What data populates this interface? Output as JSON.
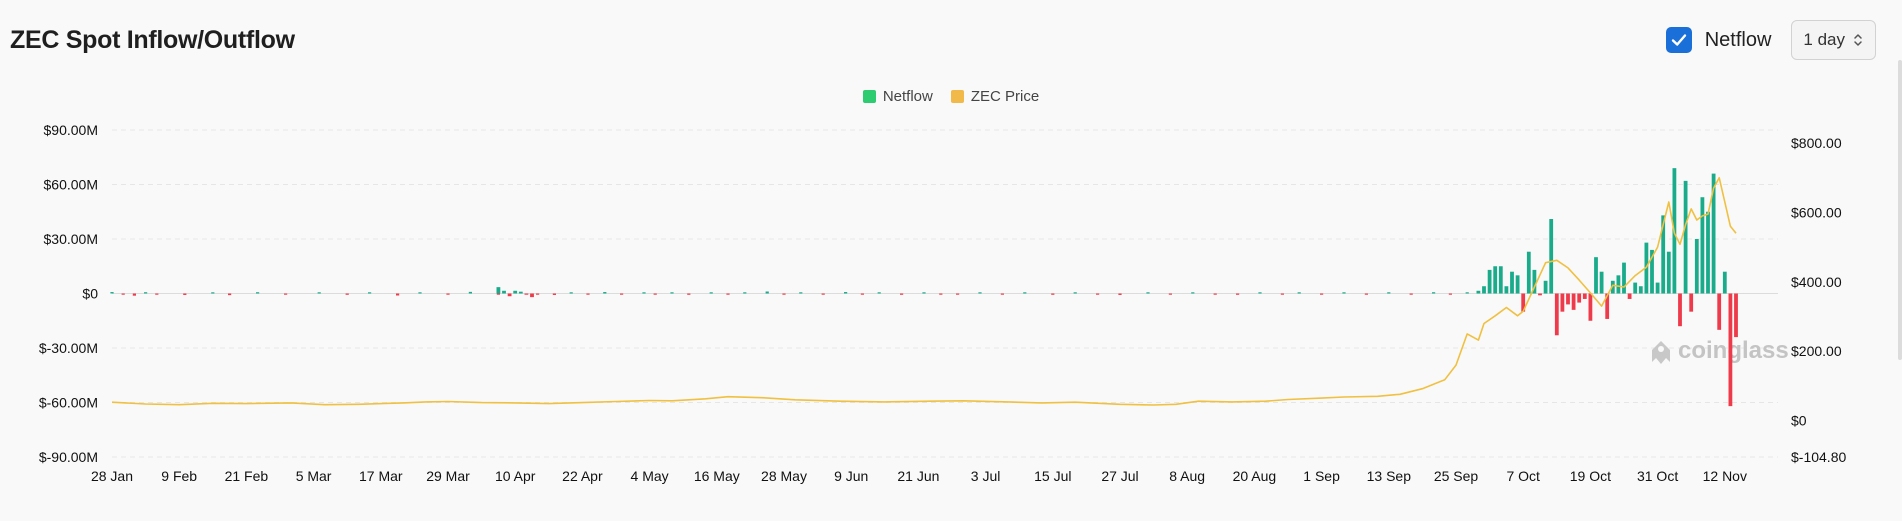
{
  "title": "ZEC Spot Inflow/Outflow",
  "controls": {
    "netflow_label": "Netflow",
    "netflow_checked": true,
    "interval": "1 day"
  },
  "legend": [
    {
      "label": "Netflow",
      "color": "#2ecc71"
    },
    {
      "label": "ZEC Price",
      "color": "#f0b94a"
    }
  ],
  "watermark": "coinglass",
  "colors": {
    "positive": "#1aab8b",
    "negative": "#ee3a4a",
    "price": "#f0c040"
  },
  "chart_data": {
    "type": "bar",
    "grid": true,
    "x_labels": [
      "28 Jan",
      "9 Feb",
      "21 Feb",
      "5 Mar",
      "17 Mar",
      "29 Mar",
      "10 Apr",
      "22 Apr",
      "4 May",
      "16 May",
      "28 May",
      "9 Jun",
      "21 Jun",
      "3 Jul",
      "15 Jul",
      "27 Jul",
      "8 Aug",
      "20 Aug",
      "1 Sep",
      "13 Sep",
      "25 Sep",
      "7 Oct",
      "19 Oct",
      "31 Oct",
      "12 Nov"
    ],
    "y_left": {
      "ticks": [
        "$90.00M",
        "$60.00M",
        "$30.00M",
        "$0",
        "$-30.00M",
        "$-60.00M",
        "$-90.00M"
      ],
      "range": [
        -90,
        90
      ],
      "unit": "M USD"
    },
    "y_right": {
      "ticks": [
        "$800.00",
        "$600.00",
        "$400.00",
        "$200.00",
        "$0",
        "$-104.80"
      ],
      "range": [
        -104.8,
        850
      ]
    },
    "series": [
      {
        "name": "Netflow",
        "unit": "M USD",
        "major_bars": [
          [
            244,
            1.5
          ],
          [
            245,
            4
          ],
          [
            246,
            13
          ],
          [
            247,
            15
          ],
          [
            248,
            15
          ],
          [
            249,
            4
          ],
          [
            250,
            12
          ],
          [
            251,
            10
          ],
          [
            252,
            -10
          ],
          [
            253,
            23
          ],
          [
            254,
            13
          ],
          [
            255,
            -1
          ],
          [
            256,
            7
          ],
          [
            257,
            41
          ],
          [
            258,
            -23
          ],
          [
            259,
            -10
          ],
          [
            260,
            -6
          ],
          [
            261,
            -9
          ],
          [
            262,
            -5
          ],
          [
            263,
            -3
          ],
          [
            264,
            -15
          ],
          [
            265,
            20
          ],
          [
            266,
            12
          ],
          [
            267,
            -14
          ],
          [
            268,
            7
          ],
          [
            269,
            10
          ],
          [
            270,
            17
          ],
          [
            271,
            -3
          ],
          [
            272,
            6
          ],
          [
            273,
            4
          ],
          [
            274,
            28
          ],
          [
            275,
            24
          ],
          [
            276,
            6
          ],
          [
            277,
            43
          ],
          [
            278,
            23
          ],
          [
            279,
            69
          ],
          [
            280,
            -18
          ],
          [
            281,
            62
          ],
          [
            282,
            -10
          ],
          [
            283,
            30
          ],
          [
            284,
            53
          ],
          [
            285,
            45
          ],
          [
            286,
            66
          ],
          [
            287,
            -20
          ],
          [
            288,
            12
          ],
          [
            289,
            -62
          ],
          [
            290,
            -24
          ]
        ],
        "minor_bars": [
          [
            0,
            0.8
          ],
          [
            2,
            -0.6
          ],
          [
            4,
            -1.2
          ],
          [
            6,
            0.7
          ],
          [
            8,
            -0.5
          ],
          [
            13,
            -0.8
          ],
          [
            18,
            0.6
          ],
          [
            21,
            -0.9
          ],
          [
            26,
            0.7
          ],
          [
            31,
            -0.6
          ],
          [
            37,
            0.5
          ],
          [
            42,
            -0.7
          ],
          [
            46,
            0.6
          ],
          [
            51,
            -1.1
          ],
          [
            55,
            0.4
          ],
          [
            60,
            -0.5
          ],
          [
            64,
            0.9
          ],
          [
            69,
            -0.6
          ],
          [
            72,
            0.5
          ],
          [
            76,
            -0.4
          ],
          [
            79,
            -0.8
          ],
          [
            82,
            0.6
          ],
          [
            85,
            -0.5
          ],
          [
            88,
            0.8
          ],
          [
            91,
            -0.5
          ],
          [
            95,
            0.4
          ],
          [
            97,
            -0.6
          ],
          [
            100,
            0.5
          ],
          [
            103,
            -0.7
          ],
          [
            107,
            0.6
          ],
          [
            110,
            -0.4
          ],
          [
            113,
            0.5
          ],
          [
            117,
            1.1
          ],
          [
            120,
            -0.6
          ],
          [
            123,
            0.5
          ],
          [
            127,
            -0.5
          ],
          [
            131,
            0.8
          ],
          [
            134,
            -0.4
          ],
          [
            137,
            0.6
          ],
          [
            141,
            -0.7
          ],
          [
            145,
            0.5
          ],
          [
            148,
            -0.6
          ],
          [
            151,
            -0.5
          ],
          [
            155,
            0.4
          ],
          [
            159,
            -0.6
          ],
          [
            163,
            0.5
          ],
          [
            168,
            -0.7
          ],
          [
            172,
            0.4
          ],
          [
            176,
            -0.5
          ],
          [
            180,
            -0.8
          ],
          [
            185,
            0.5
          ],
          [
            189,
            -0.6
          ],
          [
            193,
            0.4
          ],
          [
            197,
            -0.5
          ],
          [
            201,
            -0.7
          ],
          [
            205,
            0.5
          ],
          [
            209,
            -0.4
          ],
          [
            212,
            0.6
          ],
          [
            216,
            -0.5
          ],
          [
            220,
            0.4
          ],
          [
            224,
            -0.6
          ],
          [
            228,
            0.5
          ],
          [
            232,
            -0.4
          ],
          [
            236,
            0.7
          ],
          [
            239,
            -0.5
          ],
          [
            242,
            0.6
          ]
        ],
        "april_cluster": [
          [
            69,
            3.5
          ],
          [
            70,
            1.5
          ],
          [
            71,
            -1.5
          ],
          [
            72,
            1.5
          ],
          [
            73,
            1.0
          ],
          [
            74,
            -0.5
          ],
          [
            75,
            -2.0
          ]
        ]
      },
      {
        "name": "ZEC Price",
        "unit": "USD",
        "points": [
          [
            0,
            53
          ],
          [
            6,
            48
          ],
          [
            12,
            46
          ],
          [
            18,
            50
          ],
          [
            24,
            49
          ],
          [
            32,
            51
          ],
          [
            38,
            46
          ],
          [
            44,
            47
          ],
          [
            52,
            51
          ],
          [
            56,
            54
          ],
          [
            60,
            55
          ],
          [
            66,
            52
          ],
          [
            72,
            51
          ],
          [
            78,
            49
          ],
          [
            84,
            52
          ],
          [
            90,
            55
          ],
          [
            96,
            58
          ],
          [
            100,
            57
          ],
          [
            106,
            63
          ],
          [
            110,
            69
          ],
          [
            116,
            66
          ],
          [
            122,
            60
          ],
          [
            130,
            56
          ],
          [
            138,
            54
          ],
          [
            146,
            56
          ],
          [
            152,
            57
          ],
          [
            160,
            54
          ],
          [
            166,
            51
          ],
          [
            172,
            53
          ],
          [
            180,
            47
          ],
          [
            186,
            45
          ],
          [
            190,
            47
          ],
          [
            194,
            56
          ],
          [
            200,
            54
          ],
          [
            206,
            56
          ],
          [
            210,
            61
          ],
          [
            216,
            65
          ],
          [
            220,
            68
          ],
          [
            226,
            70
          ],
          [
            230,
            76
          ],
          [
            234,
            92
          ],
          [
            238,
            118
          ],
          [
            240,
            160
          ],
          [
            242,
            250
          ],
          [
            244,
            232
          ],
          [
            245,
            280
          ],
          [
            247,
            302
          ],
          [
            249,
            326
          ],
          [
            251,
            302
          ],
          [
            252,
            315
          ],
          [
            254,
            385
          ],
          [
            256,
            455
          ],
          [
            258,
            462
          ],
          [
            260,
            440
          ],
          [
            262,
            405
          ],
          [
            264,
            368
          ],
          [
            266,
            330
          ],
          [
            268,
            390
          ],
          [
            270,
            385
          ],
          [
            272,
            418
          ],
          [
            274,
            442
          ],
          [
            276,
            500
          ],
          [
            278,
            630
          ],
          [
            279,
            540
          ],
          [
            280,
            508
          ],
          [
            281,
            565
          ],
          [
            282,
            610
          ],
          [
            283,
            578
          ],
          [
            284,
            590
          ],
          [
            285,
            595
          ],
          [
            286,
            670
          ],
          [
            287,
            700
          ],
          [
            288,
            630
          ],
          [
            289,
            560
          ],
          [
            290,
            540
          ]
        ]
      }
    ]
  }
}
